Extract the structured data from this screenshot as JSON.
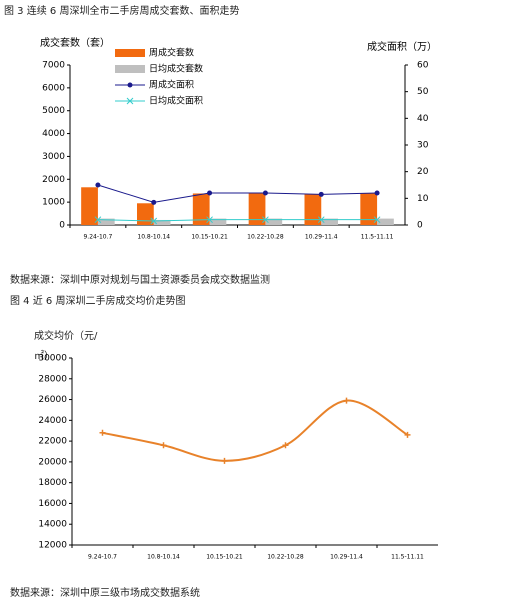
{
  "figure3_caption": "图 3  连续 6 周深圳全市二手房周成交套数、面积走势",
  "source3": "数据来源：深圳中原对规划与国土资源委员会成交数据监测",
  "figure4_caption": "图 4   近 6 周深圳二手房成交均价走势图",
  "source4": "数据来源：深圳中原三级市场成交数据系统",
  "chart_data": [
    {
      "type": "bar",
      "ylabel": "成交套数（套）",
      "y2label": "成交面积（万）",
      "categories": [
        "9.24-10.7",
        "10.8-10.14",
        "10.15-10.21",
        "10.22-10.28",
        "10.29-11.4",
        "11.5-11.11"
      ],
      "series": [
        {
          "name": "周成交套数",
          "type": "bar",
          "color": "#f26a0f",
          "values": [
            1650,
            950,
            1380,
            1380,
            1350,
            1380
          ]
        },
        {
          "name": "日均成交套数",
          "type": "bar",
          "color": "#bfbfbf",
          "values": [
            280,
            220,
            280,
            280,
            280,
            280
          ]
        },
        {
          "name": "周成交面积",
          "type": "line",
          "marker": "circle",
          "axis": "y2",
          "color": "#1a1a8c",
          "values": [
            15,
            8.5,
            12,
            12,
            11.5,
            12
          ]
        },
        {
          "name": "日均成交面积",
          "type": "line",
          "marker": "x",
          "axis": "y2",
          "color": "#33cccc",
          "values": [
            2,
            1.5,
            2,
            2,
            2,
            2
          ]
        }
      ],
      "ylim": [
        0,
        7000
      ],
      "yticks": [
        0,
        1000,
        2000,
        3000,
        4000,
        5000,
        6000,
        7000
      ],
      "y2lim": [
        0,
        60
      ],
      "y2ticks": [
        0,
        10,
        20,
        30,
        40,
        50,
        60
      ],
      "legend": "upper-left"
    },
    {
      "type": "line",
      "ylabel": "成交均价（元/㎡）",
      "categories": [
        "9.24-10.7",
        "10.8-10.14",
        "10.15-10.21",
        "10.22-10.28",
        "10.29-11.4",
        "11.5-11.11"
      ],
      "series": [
        {
          "name": "成交均价",
          "color": "#e8822a",
          "values": [
            22800,
            21600,
            20100,
            21600,
            25900,
            22600
          ]
        }
      ],
      "ylim": [
        12000,
        30000
      ],
      "yticks": [
        12000,
        14000,
        16000,
        18000,
        20000,
        22000,
        24000,
        26000,
        28000,
        30000
      ],
      "smooth": true
    }
  ]
}
